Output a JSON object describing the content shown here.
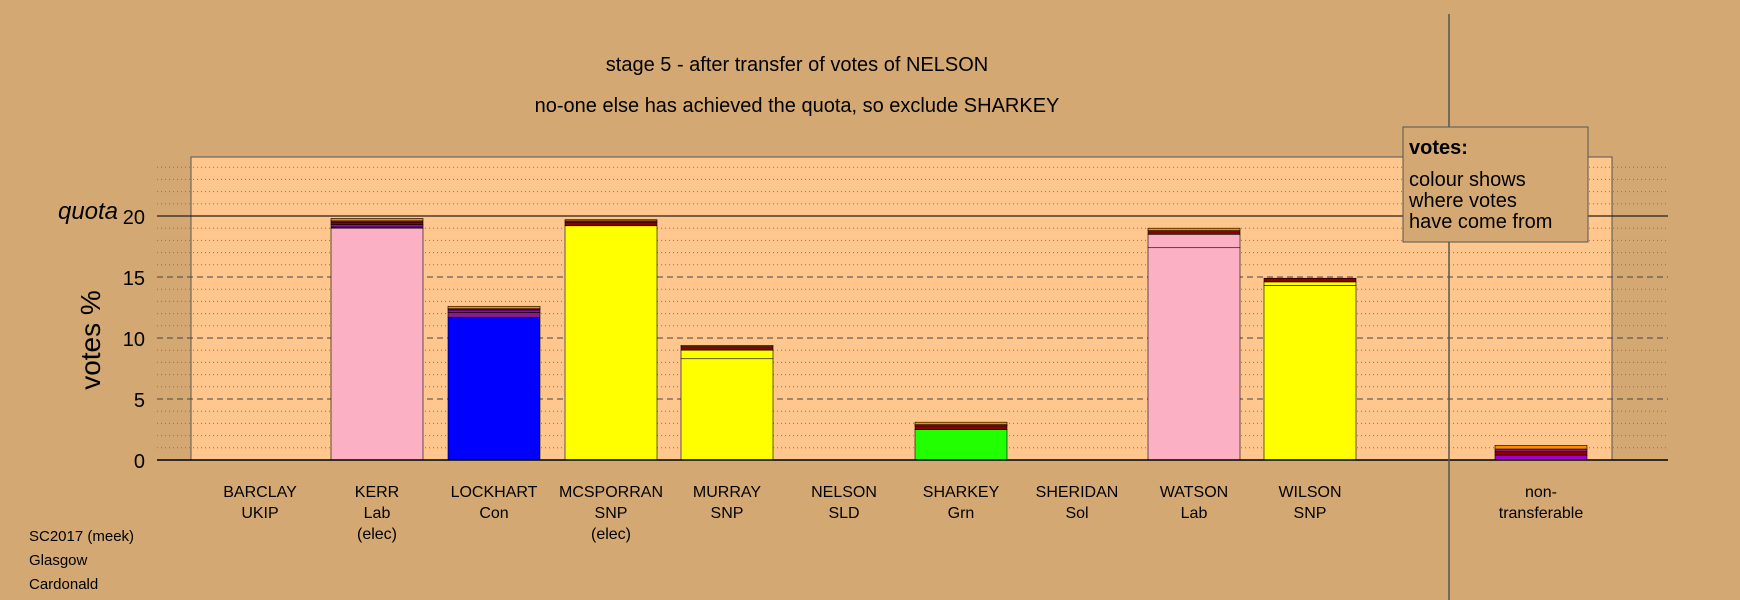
{
  "chart_data": {
    "type": "bar",
    "title": "stage 5 - after transfer of votes of NELSON",
    "subtitle": "no-one else has achieved the quota, so exclude SHARKEY",
    "ylabel": "votes %",
    "quota_label": "quota",
    "quota_value": 20,
    "ylim": [
      0,
      25
    ],
    "yticks": [
      0,
      5,
      10,
      15,
      20
    ],
    "grid": "dashed at major ticks, dotted at minor ticks",
    "legend": {
      "title": "votes:",
      "lines": [
        "colour shows",
        "where votes",
        "have come from"
      ],
      "placement": "top-right"
    },
    "categories": [
      {
        "lines": [
          "BARCLAY",
          "UKIP"
        ],
        "segments": []
      },
      {
        "lines": [
          "KERR",
          "Lab",
          "(elec)"
        ],
        "segments": [
          {
            "from": "Lab",
            "color": "#fbb0c4",
            "value": 19.0
          },
          {
            "from": "Con",
            "color": "#0000ff",
            "value": 0.1
          },
          {
            "from": "SLD",
            "color": "#a000c8",
            "value": 0.2
          },
          {
            "from": "Sol",
            "color": "#8b0000",
            "value": 0.2
          },
          {
            "from": "UKIP",
            "color": "#8a1c88",
            "value": 0.1
          },
          {
            "from": "Grn",
            "color": "#ff8c00",
            "value": 0.2
          }
        ]
      },
      {
        "lines": [
          "LOCKHART",
          "Con"
        ],
        "segments": [
          {
            "from": "Con",
            "color": "#0000ff",
            "value": 11.7
          },
          {
            "from": "UKIP",
            "color": "#8a1c88",
            "value": 0.4
          },
          {
            "from": "SLD",
            "color": "#a000c8",
            "value": 0.2
          },
          {
            "from": "Sol",
            "color": "#8b0000",
            "value": 0.1
          },
          {
            "from": "Grn",
            "color": "#ff8c00",
            "value": 0.2
          }
        ]
      },
      {
        "lines": [
          "MCSPORRAN",
          "SNP",
          "(elec)"
        ],
        "segments": [
          {
            "from": "SNP",
            "color": "#ffff00",
            "value": 19.2
          },
          {
            "from": "Sol",
            "color": "#8b0000",
            "value": 0.3
          },
          {
            "from": "SLD",
            "color": "#a000c8",
            "value": 0.1
          },
          {
            "from": "Grn",
            "color": "#ff8c00",
            "value": 0.1
          }
        ]
      },
      {
        "lines": [
          "MURRAY",
          "SNP"
        ],
        "segments": [
          {
            "from": "SNP",
            "color": "#ffff00",
            "value": 8.3
          },
          {
            "from": "SNP transfer",
            "color": "#ffff00",
            "value": 0.7
          },
          {
            "from": "Sol",
            "color": "#8b0000",
            "value": 0.3
          },
          {
            "from": "Grn",
            "color": "#ff8c00",
            "value": 0.1
          }
        ]
      },
      {
        "lines": [
          "NELSON",
          "SLD"
        ],
        "segments": []
      },
      {
        "lines": [
          "SHARKEY",
          "Grn"
        ],
        "segments": [
          {
            "from": "Grn",
            "color": "#22ff00",
            "value": 2.5
          },
          {
            "from": "Sol",
            "color": "#8b0000",
            "value": 0.3
          },
          {
            "from": "SLD",
            "color": "#a000c8",
            "value": 0.1
          },
          {
            "from": "Lab",
            "color": "#ff8c00",
            "value": 0.2
          }
        ]
      },
      {
        "lines": [
          "SHERIDAN",
          "Sol"
        ],
        "segments": []
      },
      {
        "lines": [
          "WATSON",
          "Lab"
        ],
        "segments": [
          {
            "from": "Lab",
            "color": "#fbb0c4",
            "value": 17.4
          },
          {
            "from": "Lab transfer",
            "color": "#fbb0c4",
            "value": 1.1
          },
          {
            "from": "Sol",
            "color": "#8b0000",
            "value": 0.3
          },
          {
            "from": "Grn",
            "color": "#ff8c00",
            "value": 0.2
          }
        ]
      },
      {
        "lines": [
          "WILSON",
          "SNP"
        ],
        "segments": [
          {
            "from": "SNP",
            "color": "#ffff00",
            "value": 14.3
          },
          {
            "from": "SNP transfer",
            "color": "#ffff00",
            "value": 0.3
          },
          {
            "from": "Sol",
            "color": "#8b0000",
            "value": 0.3
          }
        ]
      },
      {
        "lines": [
          "non-",
          "transferable"
        ],
        "segments": [
          {
            "from": "SLD",
            "color": "#a000c8",
            "value": 0.4
          },
          {
            "from": "Sol",
            "color": "#8b0000",
            "value": 0.3
          },
          {
            "from": "UKIP",
            "color": "#8a1c88",
            "value": 0.2
          },
          {
            "from": "Grn",
            "color": "#ff8c00",
            "value": 0.3
          }
        ]
      }
    ]
  },
  "footer": {
    "lines": [
      "SC2017 (meek)",
      "Glasgow",
      "Cardonald"
    ]
  },
  "colors": {
    "background": "#d4a873",
    "plot_bg": "#ffc78e"
  }
}
